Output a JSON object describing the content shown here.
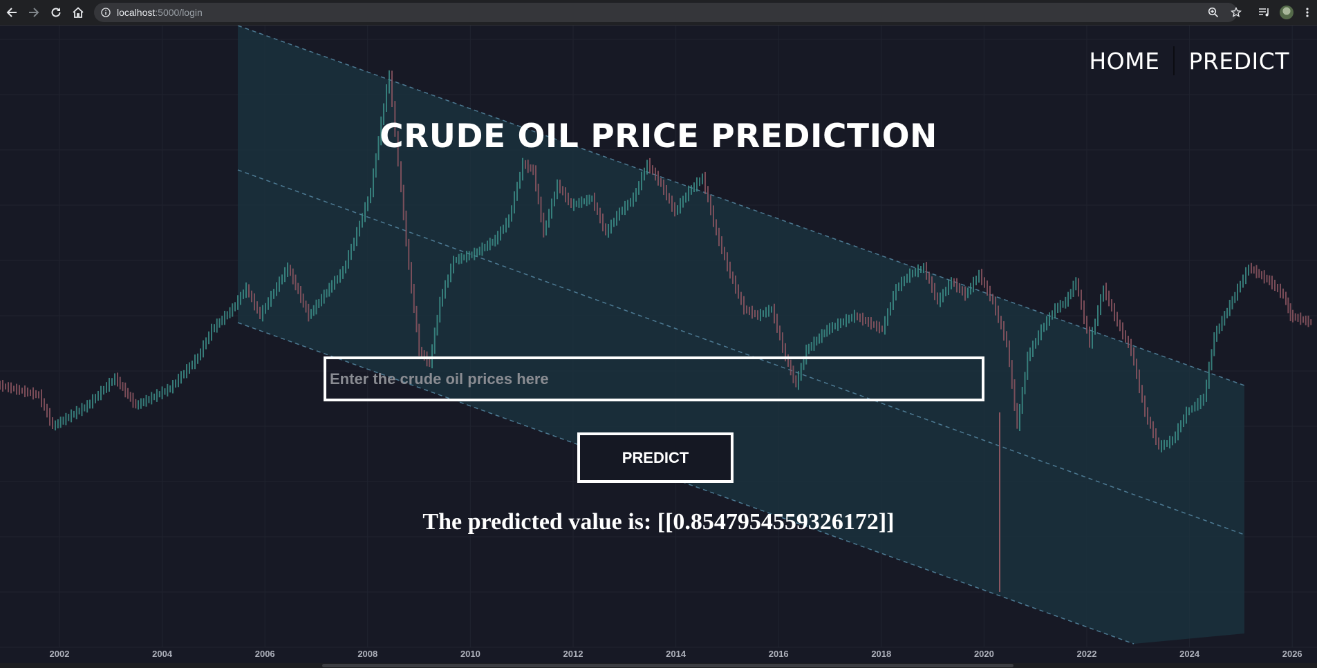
{
  "browser": {
    "url_host": "localhost",
    "url_path": ":5000/login",
    "icons": [
      "back-arrow-icon",
      "forward-arrow-icon",
      "reload-icon",
      "home-icon",
      "info-icon",
      "zoom-icon",
      "star-icon",
      "media-icon",
      "profile-avatar",
      "more-icon"
    ]
  },
  "nav": {
    "home": "HOME",
    "predict": "PREDICT"
  },
  "title": "CRUDE OIL PRICE PREDICTION",
  "form": {
    "placeholder": "Enter the crude oil prices here",
    "value": "",
    "button": "PREDICT"
  },
  "result": "The predicted value is: [[0.8547954559326172]]",
  "background_chart": {
    "x_ticks": [
      "2002",
      "2004",
      "2006",
      "2008",
      "2010",
      "2012",
      "2014",
      "2016",
      "2018",
      "2020",
      "2022",
      "2024",
      "2026"
    ],
    "colors": {
      "channel": "#1c3340",
      "dash": "#4d7a93",
      "up": "#3c8d87",
      "down": "#8c5661"
    }
  }
}
